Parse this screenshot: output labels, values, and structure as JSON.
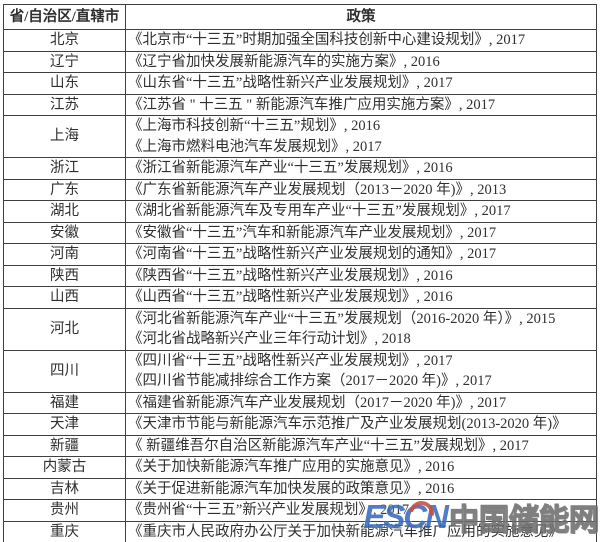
{
  "table": {
    "headers": [
      "省/自治区/直辖市",
      "政策"
    ],
    "rows": [
      {
        "region": "北京",
        "policies": [
          "《北京市“十三五”时期加强全国科技创新中心建设规划》, 2017"
        ]
      },
      {
        "region": "辽宁",
        "policies": [
          "《辽宁省加快发展新能源汽车的实施方案》, 2016"
        ]
      },
      {
        "region": "山东",
        "policies": [
          "《山东省“十三五”战略性新兴产业发展规划》, 2017"
        ]
      },
      {
        "region": "江苏",
        "policies": [
          "《江苏省 \" 十三五 \" 新能源汽车推广应用实施方案》, 2017"
        ]
      },
      {
        "region": "上海",
        "policies": [
          "《上海市科技创新“十三五”规划》, 2016",
          "《上海市燃料电池汽车发展规划》, 2017"
        ]
      },
      {
        "region": "浙江",
        "policies": [
          "《浙江省新能源汽车产业“十三五”发展规划》, 2016"
        ]
      },
      {
        "region": "广东",
        "policies": [
          "《广东省新能源汽车产业发展规划（2013－2020 年)》, 2013"
        ]
      },
      {
        "region": "湖北",
        "policies": [
          "《湖北省新能源汽车及专用车产业“十三五”发展规划》, 2017"
        ]
      },
      {
        "region": "安徽",
        "policies": [
          "《安徽省“十三五”汽车和新能源汽车产业发展规划》, 2017"
        ]
      },
      {
        "region": "河南",
        "policies": [
          "《河南省“十三五”战略性新兴产业发展规划的通知》, 2017"
        ]
      },
      {
        "region": "陕西",
        "policies": [
          "《陕西省“十三五”战略性新兴产业发展规划》, 2016"
        ]
      },
      {
        "region": "山西",
        "policies": [
          "《山西省“十三五”战略性新兴产业发展规划》, 2016"
        ]
      },
      {
        "region": "河北",
        "policies": [
          "《河北省新能源汽车产业“十三五”发展规划（2016-2020 年）》, 2015",
          "《河北省战略新兴产业三年行动计划》, 2018"
        ]
      },
      {
        "region": "四川",
        "policies": [
          "《四川省“十三五”战略性新兴产业发展规划》, 2017",
          "《四川省节能减排综合工作方案（2017－2020 年)》, 2017"
        ]
      },
      {
        "region": "福建",
        "policies": [
          "《福建省新能源汽车产业发展规划（2017－2020 年)》, 2017"
        ]
      },
      {
        "region": "天津",
        "policies": [
          "《天津市节能与新能源汽车示范推广及产业发展规划(2013-2020 年)》"
        ]
      },
      {
        "region": "新疆",
        "policies": [
          "《 新疆维吾尔自治区新能源汽车产业“十三五”发展规划》, 2017"
        ]
      },
      {
        "region": "内蒙古",
        "policies": [
          "《关于加快新能源汽车推广应用的实施意见》, 2016"
        ]
      },
      {
        "region": "吉林",
        "policies": [
          "《关于促进新能源汽车加快发展的政策意见》, 2016"
        ]
      },
      {
        "region": "贵州",
        "policies": [
          "《贵州省“十三五”新兴产业发展规划》, 2017"
        ]
      },
      {
        "region": "重庆",
        "policies": [
          "《重庆市人民政府办公厅关于加快新能源汽车推广应用的实施意见》"
        ]
      }
    ]
  },
  "watermark": {
    "logo": "ESCN",
    "site": "中国储能网",
    "logo_color": "#3a6cc0",
    "accent_color": "#c0392b",
    "site_color": "#8a8a8a"
  }
}
